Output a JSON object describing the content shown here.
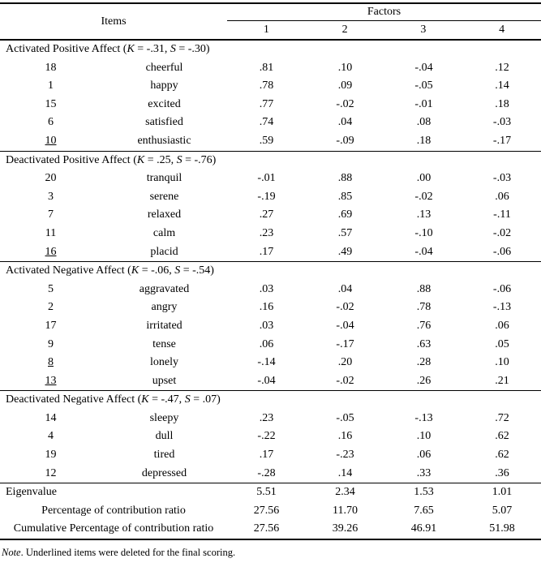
{
  "table": {
    "items_header": "Items",
    "factors_header": "Factors",
    "factor_columns": [
      "1",
      "2",
      "3",
      "4"
    ],
    "sections": [
      {
        "title_parts": [
          {
            "t": "Activated Positive Affect (",
            "i": false
          },
          {
            "t": "K",
            "i": true
          },
          {
            "t": " = -.31, ",
            "i": false
          },
          {
            "t": "S",
            "i": true
          },
          {
            "t": " = -.30)",
            "i": false
          }
        ],
        "rows": [
          {
            "num": "18",
            "underlined": false,
            "label": "cheerful",
            "values": [
              ".81",
              ".10",
              "-.04",
              ".12"
            ]
          },
          {
            "num": "1",
            "underlined": false,
            "label": "happy",
            "values": [
              ".78",
              ".09",
              "-.05",
              ".14"
            ]
          },
          {
            "num": "15",
            "underlined": false,
            "label": "excited",
            "values": [
              ".77",
              "-.02",
              "-.01",
              ".18"
            ]
          },
          {
            "num": "6",
            "underlined": false,
            "label": "satisfied",
            "values": [
              ".74",
              ".04",
              ".08",
              "-.03"
            ]
          },
          {
            "num": "10",
            "underlined": true,
            "label": "enthusiastic",
            "values": [
              ".59",
              "-.09",
              ".18",
              "-.17"
            ]
          }
        ]
      },
      {
        "title_parts": [
          {
            "t": "Deactivated Positive Affect (",
            "i": false
          },
          {
            "t": "K",
            "i": true
          },
          {
            "t": " = .25, ",
            "i": false
          },
          {
            "t": "S",
            "i": true
          },
          {
            "t": " = -.76)",
            "i": false
          }
        ],
        "rows": [
          {
            "num": "20",
            "underlined": false,
            "label": "tranquil",
            "values": [
              "-.01",
              ".88",
              ".00",
              "-.03"
            ]
          },
          {
            "num": "3",
            "underlined": false,
            "label": "serene",
            "values": [
              "-.19",
              ".85",
              "-.02",
              ".06"
            ]
          },
          {
            "num": "7",
            "underlined": false,
            "label": "relaxed",
            "values": [
              ".27",
              ".69",
              ".13",
              "-.11"
            ]
          },
          {
            "num": "11",
            "underlined": false,
            "label": "calm",
            "values": [
              ".23",
              ".57",
              "-.10",
              "-.02"
            ]
          },
          {
            "num": "16",
            "underlined": true,
            "label": "placid",
            "values": [
              ".17",
              ".49",
              "-.04",
              "-.06"
            ]
          }
        ]
      },
      {
        "title_parts": [
          {
            "t": "Activated Negative Affect (",
            "i": false
          },
          {
            "t": "K",
            "i": true
          },
          {
            "t": " = -.06, ",
            "i": false
          },
          {
            "t": "S",
            "i": true
          },
          {
            "t": " = -.54)",
            "i": false
          }
        ],
        "rows": [
          {
            "num": "5",
            "underlined": false,
            "label": "aggravated",
            "values": [
              ".03",
              ".04",
              ".88",
              "-.06"
            ]
          },
          {
            "num": "2",
            "underlined": false,
            "label": "angry",
            "values": [
              ".16",
              "-.02",
              ".78",
              "-.13"
            ]
          },
          {
            "num": "17",
            "underlined": false,
            "label": "irritated",
            "values": [
              ".03",
              "-.04",
              ".76",
              ".06"
            ]
          },
          {
            "num": "9",
            "underlined": false,
            "label": "tense",
            "values": [
              ".06",
              "-.17",
              ".63",
              ".05"
            ]
          },
          {
            "num": "8",
            "underlined": true,
            "label": "lonely",
            "values": [
              "-.14",
              ".20",
              ".28",
              ".10"
            ]
          },
          {
            "num": "13",
            "underlined": true,
            "label": "upset",
            "values": [
              "-.04",
              "-.02",
              ".26",
              ".21"
            ]
          }
        ]
      },
      {
        "title_parts": [
          {
            "t": "Deactivated Negative Affect (",
            "i": false
          },
          {
            "t": "K",
            "i": true
          },
          {
            "t": " = -.47, ",
            "i": false
          },
          {
            "t": "S",
            "i": true
          },
          {
            "t": " = .07)",
            "i": false
          }
        ],
        "rows": [
          {
            "num": "14",
            "underlined": false,
            "label": "sleepy",
            "values": [
              ".23",
              "-.05",
              "-.13",
              ".72"
            ]
          },
          {
            "num": "4",
            "underlined": false,
            "label": "dull",
            "values": [
              "-.22",
              ".16",
              ".10",
              ".62"
            ]
          },
          {
            "num": "19",
            "underlined": false,
            "label": "tired",
            "values": [
              ".17",
              "-.23",
              ".06",
              ".62"
            ]
          },
          {
            "num": "12",
            "underlined": false,
            "label": "depressed",
            "values": [
              "-.28",
              ".14",
              ".33",
              ".36"
            ]
          }
        ]
      }
    ],
    "footer_rows": [
      {
        "label": "Eigenvalue",
        "align": "left",
        "values": [
          "5.51",
          "2.34",
          "1.53",
          "1.01"
        ]
      },
      {
        "label": "Percentage of contribution ratio",
        "align": "center",
        "values": [
          "27.56",
          "11.70",
          "7.65",
          "5.07"
        ]
      },
      {
        "label": "Cumulative Percentage of contribution ratio",
        "align": "center",
        "values": [
          "27.56",
          "39.26",
          "46.91",
          "51.98"
        ]
      }
    ]
  },
  "note": {
    "parts": [
      {
        "t": "Note",
        "i": true
      },
      {
        "t": ". Underlined items were deleted for the final scoring.",
        "i": false
      }
    ]
  }
}
